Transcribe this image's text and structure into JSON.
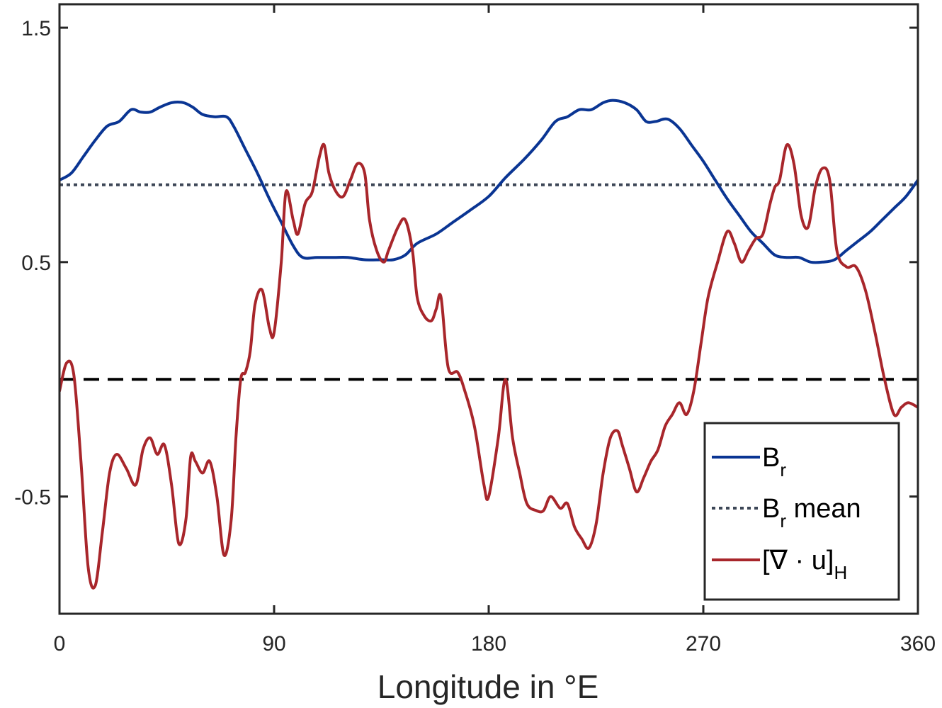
{
  "chart_data": {
    "type": "line",
    "xlabel": "Longitude in °E",
    "ylabel": "",
    "xlim": [
      0,
      360
    ],
    "ylim": [
      -1.0,
      1.6
    ],
    "xticks": [
      0,
      90,
      180,
      270,
      360
    ],
    "xtick_labels": [
      "0",
      "90",
      "180",
      "270",
      "360"
    ],
    "yticks": [
      -0.5,
      0.5,
      1.5
    ],
    "ytick_labels": [
      "-0.5",
      "0.5",
      "1.5"
    ],
    "grid": false,
    "legend_position": "bottom-right",
    "legend": [
      {
        "main": "B",
        "sub": "r",
        "rest": "",
        "color": "#0a3593",
        "style": "solid"
      },
      {
        "main": "B",
        "sub": "r",
        "rest": " mean",
        "color": "#3d4757",
        "style": "dotted"
      },
      {
        "main": "[∇ · u]",
        "sub": "H",
        "rest": "",
        "color": "#a8262b",
        "style": "solid"
      }
    ],
    "reference_lines": [
      {
        "y": 0.0,
        "color": "#000000",
        "style": "dashed"
      },
      {
        "y": 0.83,
        "color": "#3d4757",
        "style": "dotted"
      }
    ],
    "series": [
      {
        "key": "br",
        "color": "#0a3593",
        "x": [
          0,
          5,
          10,
          15,
          20,
          25,
          30,
          34,
          38,
          42,
          47,
          52,
          56,
          60,
          65,
          70,
          73,
          78,
          83,
          88,
          93,
          98,
          102,
          108,
          115,
          121,
          128,
          135,
          140,
          145,
          150,
          158,
          165,
          172,
          180,
          187,
          195,
          202,
          208,
          213,
          218,
          223,
          228,
          232,
          237,
          242,
          246,
          250,
          255,
          260,
          265,
          270,
          275,
          280,
          285,
          290,
          295,
          300,
          305,
          310,
          315,
          320,
          325,
          330,
          335,
          340,
          345,
          350,
          355,
          360
        ],
        "y": [
          0.85,
          0.88,
          0.95,
          1.02,
          1.08,
          1.1,
          1.15,
          1.14,
          1.14,
          1.16,
          1.18,
          1.18,
          1.16,
          1.13,
          1.12,
          1.12,
          1.08,
          0.98,
          0.88,
          0.77,
          0.67,
          0.57,
          0.52,
          0.52,
          0.52,
          0.52,
          0.51,
          0.51,
          0.51,
          0.53,
          0.58,
          0.62,
          0.67,
          0.72,
          0.78,
          0.86,
          0.94,
          1.02,
          1.1,
          1.12,
          1.15,
          1.15,
          1.18,
          1.19,
          1.18,
          1.15,
          1.1,
          1.1,
          1.11,
          1.07,
          1.0,
          0.93,
          0.85,
          0.77,
          0.7,
          0.63,
          0.58,
          0.53,
          0.52,
          0.52,
          0.5,
          0.5,
          0.51,
          0.55,
          0.59,
          0.63,
          0.68,
          0.73,
          0.78,
          0.85
        ]
      },
      {
        "key": "div",
        "color": "#a8262b",
        "x": [
          0,
          3,
          6,
          9,
          12,
          15,
          18,
          21,
          24,
          28,
          32,
          35,
          38,
          41,
          44,
          47,
          50,
          53,
          55,
          57,
          60,
          63,
          66,
          69,
          72,
          74,
          76,
          78,
          80,
          82,
          85,
          88,
          90,
          93,
          95,
          98,
          100,
          103,
          106,
          109,
          111,
          113,
          116,
          119,
          122,
          125,
          128,
          130,
          133,
          136,
          138,
          142,
          145,
          148,
          150,
          153,
          156,
          158,
          160,
          163,
          167,
          170,
          174,
          178,
          180,
          184,
          187,
          190,
          193,
          196,
          200,
          203,
          206,
          210,
          213,
          216,
          219,
          222,
          225,
          228,
          231,
          234,
          236,
          239,
          242,
          245,
          248,
          251,
          254,
          257,
          260,
          263,
          266,
          269,
          272,
          276,
          280,
          283,
          286,
          289,
          292,
          295,
          298,
          300,
          302,
          305,
          308,
          311,
          314,
          317,
          320,
          323,
          326,
          330,
          334,
          338,
          342,
          346,
          350,
          353,
          356,
          360
        ],
        "y": [
          -0.05,
          0.07,
          0.02,
          -0.35,
          -0.8,
          -0.88,
          -0.65,
          -0.4,
          -0.32,
          -0.38,
          -0.45,
          -0.3,
          -0.25,
          -0.32,
          -0.28,
          -0.45,
          -0.7,
          -0.6,
          -0.33,
          -0.35,
          -0.4,
          -0.35,
          -0.5,
          -0.75,
          -0.6,
          -0.25,
          0.0,
          0.03,
          0.12,
          0.32,
          0.38,
          0.22,
          0.2,
          0.5,
          0.8,
          0.68,
          0.62,
          0.75,
          0.8,
          0.95,
          1.0,
          0.88,
          0.8,
          0.78,
          0.85,
          0.92,
          0.88,
          0.68,
          0.55,
          0.5,
          0.55,
          0.65,
          0.68,
          0.55,
          0.35,
          0.27,
          0.25,
          0.3,
          0.35,
          0.05,
          0.03,
          -0.05,
          -0.2,
          -0.45,
          -0.5,
          -0.25,
          0.0,
          -0.25,
          -0.4,
          -0.53,
          -0.56,
          -0.56,
          -0.5,
          -0.55,
          -0.53,
          -0.63,
          -0.68,
          -0.72,
          -0.62,
          -0.4,
          -0.25,
          -0.22,
          -0.28,
          -0.38,
          -0.48,
          -0.42,
          -0.35,
          -0.3,
          -0.2,
          -0.15,
          -0.1,
          -0.15,
          -0.05,
          0.15,
          0.35,
          0.5,
          0.63,
          0.58,
          0.5,
          0.55,
          0.6,
          0.62,
          0.75,
          0.82,
          0.85,
          1.0,
          0.92,
          0.7,
          0.65,
          0.82,
          0.9,
          0.85,
          0.55,
          0.48,
          0.48,
          0.38,
          0.2,
          0.0,
          -0.15,
          -0.12,
          -0.1,
          -0.12
        ]
      }
    ]
  }
}
